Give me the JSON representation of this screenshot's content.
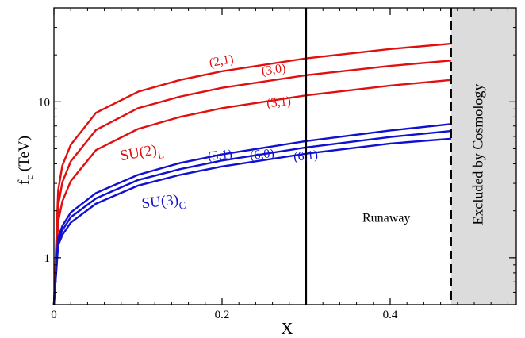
{
  "chart_data": {
    "type": "line",
    "title": "",
    "xlabel": "X",
    "ylabel_main": "f",
    "ylabel_sub": "c",
    "ylabel_unit": " (TeV)",
    "xlim": [
      0,
      0.55
    ],
    "ylim": [
      0.5,
      40
    ],
    "yscale": "log",
    "grid": false,
    "x_ticks": [
      {
        "value": 0,
        "label": "0"
      },
      {
        "value": 0.2,
        "label": "0.2"
      },
      {
        "value": 0.4,
        "label": "0.4"
      }
    ],
    "x_minor_step": 0.02,
    "y_ticks": [
      {
        "value": 1,
        "label": "1"
      },
      {
        "value": 10,
        "label": "10"
      }
    ],
    "series": [
      {
        "name": "(2,1)",
        "color": "#e01010",
        "x": [
          0,
          0.005,
          0.01,
          0.02,
          0.05,
          0.1,
          0.15,
          0.2,
          0.3,
          0.4,
          0.4725
        ],
        "y": [
          0.5,
          2.7,
          3.9,
          5.3,
          8.5,
          11.6,
          13.8,
          15.7,
          19.0,
          21.8,
          23.6
        ]
      },
      {
        "name": "(3,0)",
        "color": "#e01010",
        "x": [
          0,
          0.005,
          0.01,
          0.02,
          0.05,
          0.1,
          0.15,
          0.2,
          0.3,
          0.4,
          0.4725
        ],
        "y": [
          0.5,
          2.15,
          3.05,
          4.15,
          6.6,
          9.1,
          10.8,
          12.3,
          14.8,
          17.0,
          18.4
        ]
      },
      {
        "name": "(3,1)",
        "color": "#e01010",
        "x": [
          0,
          0.005,
          0.01,
          0.02,
          0.05,
          0.1,
          0.15,
          0.2,
          0.3,
          0.4,
          0.4725
        ],
        "y": [
          0.5,
          1.7,
          2.3,
          3.1,
          4.9,
          6.7,
          8.0,
          9.1,
          11.0,
          12.7,
          13.8
        ]
      },
      {
        "name": "(5,1)",
        "color": "#1010d0",
        "x": [
          0,
          0.005,
          0.01,
          0.02,
          0.05,
          0.1,
          0.15,
          0.2,
          0.3,
          0.4,
          0.4725
        ],
        "y": [
          0.5,
          1.35,
          1.6,
          1.95,
          2.6,
          3.4,
          4.05,
          4.6,
          5.6,
          6.55,
          7.2
        ]
      },
      {
        "name": "(6,0)",
        "color": "#1010d0",
        "x": [
          0,
          0.005,
          0.01,
          0.02,
          0.05,
          0.1,
          0.15,
          0.2,
          0.3,
          0.4,
          0.4725
        ],
        "y": [
          0.5,
          1.27,
          1.5,
          1.82,
          2.4,
          3.15,
          3.7,
          4.2,
          5.1,
          5.95,
          6.5
        ]
      },
      {
        "name": "(6,1)",
        "color": "#1010d0",
        "x": [
          0,
          0.005,
          0.01,
          0.02,
          0.05,
          0.1,
          0.15,
          0.2,
          0.3,
          0.4,
          0.4725
        ],
        "y": [
          0.5,
          1.2,
          1.4,
          1.68,
          2.22,
          2.9,
          3.4,
          3.85,
          4.65,
          5.4,
          5.8
        ]
      }
    ],
    "vertical_lines": [
      {
        "x": 0.3,
        "style": "solid"
      },
      {
        "x": 0.4725,
        "style": "dashed"
      }
    ],
    "shaded_region": {
      "x": [
        0.4725,
        0.55
      ],
      "color": "#dcdcdc"
    },
    "annotations": [
      {
        "text": "(2,1)",
        "x": 0.2,
        "y": 17.3,
        "color": "#e01010",
        "rotate": -10,
        "anchor": "middle"
      },
      {
        "text": "(3,0)",
        "x": 0.262,
        "y": 15.2,
        "color": "#e01010",
        "rotate": -8,
        "anchor": "middle"
      },
      {
        "text": "(3,1)",
        "x": 0.268,
        "y": 9.4,
        "color": "#e01010",
        "rotate": -7,
        "anchor": "middle"
      },
      {
        "text": "(5,1)",
        "x": 0.198,
        "y": 4.3,
        "color": "#1010d0",
        "rotate": -6,
        "anchor": "middle"
      },
      {
        "text": "(6,0)",
        "x": 0.248,
        "y": 4.35,
        "color": "#1010d0",
        "rotate": -6,
        "anchor": "middle"
      },
      {
        "text": "(6,1)",
        "x": 0.3,
        "y": 4.25,
        "color": "#1010d0",
        "rotate": -6,
        "anchor": "middle"
      },
      {
        "text": "Runaway",
        "x": 0.3955,
        "y": 1.7,
        "color": "#000000",
        "rotate": 0,
        "anchor": "middle"
      }
    ],
    "group_labels": [
      {
        "main": "SU(2)",
        "sub": "L",
        "x": 0.08,
        "y": 4.2,
        "color": "#e01010",
        "rotate": -10
      },
      {
        "main": "SU(3)",
        "sub": "C",
        "x": 0.105,
        "y": 2.08,
        "color": "#1010d0",
        "rotate": -6
      }
    ],
    "region_label": {
      "text": "Excluded by Cosmology",
      "x": 0.51,
      "y": 4.6,
      "color": "#000000"
    }
  }
}
